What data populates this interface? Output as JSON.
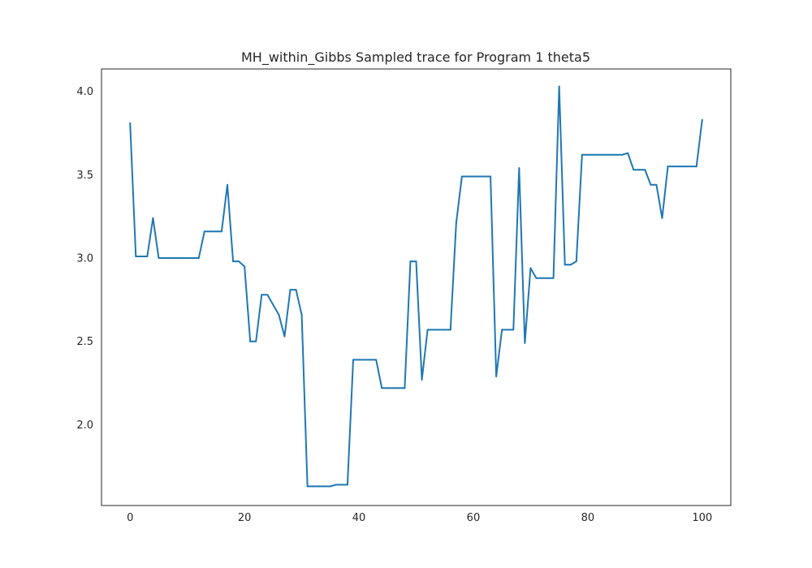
{
  "chart_data": {
    "type": "line",
    "title": "MH_within_Gibbs Sampled trace for Program 1 theta5",
    "xlabel": "",
    "ylabel": "",
    "xlim": [
      -5,
      105
    ],
    "ylim": [
      1.515,
      4.135
    ],
    "grid": false,
    "legend": "none",
    "x_ticks": [
      0,
      20,
      40,
      60,
      80,
      100
    ],
    "x_tick_labels": [
      "0",
      "20",
      "40",
      "60",
      "80",
      "100"
    ],
    "y_ticks": [
      2.0,
      2.5,
      3.0,
      3.5,
      4.0
    ],
    "y_tick_labels": [
      "2.0",
      "2.5",
      "3.0",
      "3.5",
      "4.0"
    ],
    "series": [
      {
        "color": "#1f77b4",
        "x": [
          0,
          1,
          2,
          3,
          4,
          5,
          6,
          7,
          8,
          9,
          10,
          11,
          12,
          13,
          14,
          15,
          16,
          17,
          18,
          19,
          20,
          21,
          22,
          23,
          24,
          25,
          26,
          27,
          28,
          29,
          30,
          31,
          32,
          33,
          34,
          35,
          36,
          37,
          38,
          39,
          40,
          41,
          42,
          43,
          44,
          45,
          46,
          47,
          48,
          49,
          50,
          51,
          52,
          53,
          54,
          55,
          56,
          57,
          58,
          59,
          60,
          61,
          62,
          63,
          64,
          65,
          66,
          67,
          68,
          69,
          70,
          71,
          72,
          73,
          74,
          75,
          76,
          77,
          78,
          79,
          80,
          81,
          82,
          83,
          84,
          85,
          86,
          87,
          88,
          89,
          90,
          91,
          92,
          93,
          94,
          95,
          96,
          97,
          98,
          99,
          100
        ],
        "values": [
          3.81,
          3.01,
          3.01,
          3.01,
          3.24,
          3.0,
          3.0,
          3.0,
          3.0,
          3.0,
          3.0,
          3.0,
          3.0,
          3.16,
          3.16,
          3.16,
          3.16,
          3.44,
          2.98,
          2.98,
          2.95,
          2.5,
          2.5,
          2.78,
          2.78,
          2.72,
          2.66,
          2.53,
          2.81,
          2.81,
          2.66,
          1.63,
          1.63,
          1.63,
          1.63,
          1.63,
          1.64,
          1.64,
          1.64,
          2.39,
          2.39,
          2.39,
          2.39,
          2.39,
          2.22,
          2.22,
          2.22,
          2.22,
          2.22,
          2.98,
          2.98,
          2.27,
          2.57,
          2.57,
          2.57,
          2.57,
          2.57,
          3.21,
          3.49,
          3.49,
          3.49,
          3.49,
          3.49,
          3.49,
          2.29,
          2.57,
          2.57,
          2.57,
          3.54,
          2.49,
          2.94,
          2.88,
          2.88,
          2.88,
          2.88,
          4.03,
          2.96,
          2.96,
          2.98,
          3.62,
          3.62,
          3.62,
          3.62,
          3.62,
          3.62,
          3.62,
          3.62,
          3.63,
          3.53,
          3.53,
          3.53,
          3.44,
          3.44,
          3.24,
          3.55,
          3.55,
          3.55,
          3.55,
          3.55,
          3.55,
          3.83
        ]
      }
    ]
  }
}
